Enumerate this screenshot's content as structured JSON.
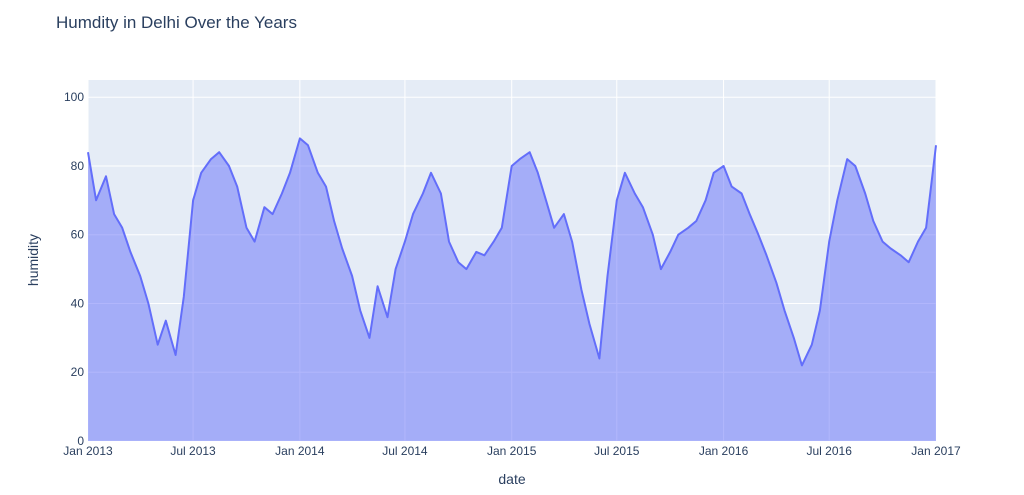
{
  "chart_data": {
    "type": "area",
    "title": "Humdity in Delhi Over the Years",
    "xlabel": "date",
    "ylabel": "humidity",
    "xlim": [
      "2013-01-01",
      "2017-01-01"
    ],
    "ylim": [
      0,
      105
    ],
    "grid": true,
    "legend": "none",
    "colors": {
      "line": "#636efa",
      "fill": "rgba(99,110,250,0.5)",
      "plot_bg": "#e5ecf6",
      "grid": "#ffffff",
      "text": "#2a3f5f"
    },
    "x_ticks": [
      {
        "date": "2013-01-01",
        "label": "Jan 2013"
      },
      {
        "date": "2013-07-01",
        "label": "Jul 2013"
      },
      {
        "date": "2014-01-01",
        "label": "Jan 2014"
      },
      {
        "date": "2014-07-01",
        "label": "Jul 2014"
      },
      {
        "date": "2015-01-01",
        "label": "Jan 2015"
      },
      {
        "date": "2015-07-01",
        "label": "Jul 2015"
      },
      {
        "date": "2016-01-01",
        "label": "Jan 2016"
      },
      {
        "date": "2016-07-01",
        "label": "Jul 2016"
      },
      {
        "date": "2017-01-01",
        "label": "Jan 2017"
      }
    ],
    "y_ticks": [
      0,
      20,
      40,
      60,
      80,
      100
    ],
    "series": [
      {
        "x": [
          "2013-01-01",
          "2013-01-15",
          "2013-02-01",
          "2013-02-15",
          "2013-03-01",
          "2013-03-15",
          "2013-04-01",
          "2013-04-15",
          "2013-05-01",
          "2013-05-15",
          "2013-06-01",
          "2013-06-15",
          "2013-07-01",
          "2013-07-15",
          "2013-08-01",
          "2013-08-15",
          "2013-09-01",
          "2013-09-15",
          "2013-10-01",
          "2013-10-15",
          "2013-11-01",
          "2013-11-15",
          "2013-12-01",
          "2013-12-15",
          "2014-01-01",
          "2014-01-15",
          "2014-02-01",
          "2014-02-15",
          "2014-03-01",
          "2014-03-15",
          "2014-04-01",
          "2014-04-15",
          "2014-05-01",
          "2014-05-15",
          "2014-06-01",
          "2014-06-15",
          "2014-07-01",
          "2014-07-15",
          "2014-08-01",
          "2014-08-15",
          "2014-09-01",
          "2014-09-15",
          "2014-10-01",
          "2014-10-15",
          "2014-11-01",
          "2014-11-15",
          "2014-12-01",
          "2014-12-15",
          "2015-01-01",
          "2015-01-15",
          "2015-02-01",
          "2015-02-15",
          "2015-03-01",
          "2015-03-15",
          "2015-04-01",
          "2015-04-15",
          "2015-05-01",
          "2015-05-15",
          "2015-06-01",
          "2015-06-15",
          "2015-07-01",
          "2015-07-15",
          "2015-08-01",
          "2015-08-15",
          "2015-09-01",
          "2015-09-15",
          "2015-10-01",
          "2015-10-15",
          "2015-11-01",
          "2015-11-15",
          "2015-12-01",
          "2015-12-15",
          "2016-01-01",
          "2016-01-15",
          "2016-02-01",
          "2016-02-15",
          "2016-03-01",
          "2016-03-15",
          "2016-04-01",
          "2016-04-15",
          "2016-05-01",
          "2016-05-15",
          "2016-06-01",
          "2016-06-15",
          "2016-07-01",
          "2016-07-15",
          "2016-08-01",
          "2016-08-15",
          "2016-09-01",
          "2016-09-15",
          "2016-10-01",
          "2016-10-15",
          "2016-11-01",
          "2016-11-15",
          "2016-12-01",
          "2016-12-15",
          "2017-01-01"
        ],
        "y": [
          84,
          70,
          77,
          66,
          62,
          55,
          48,
          40,
          28,
          35,
          25,
          42,
          70,
          78,
          82,
          84,
          80,
          74,
          62,
          58,
          68,
          66,
          72,
          78,
          88,
          86,
          78,
          74,
          64,
          56,
          48,
          38,
          30,
          45,
          36,
          50,
          58,
          66,
          72,
          78,
          72,
          58,
          52,
          50,
          55,
          54,
          58,
          62,
          80,
          82,
          84,
          78,
          70,
          62,
          66,
          58,
          44,
          34,
          24,
          48,
          70,
          78,
          72,
          68,
          60,
          50,
          55,
          60,
          62,
          64,
          70,
          78,
          80,
          74,
          72,
          66,
          60,
          54,
          46,
          38,
          30,
          22,
          28,
          38,
          58,
          70,
          82,
          80,
          72,
          64,
          58,
          56,
          54,
          52,
          58,
          62,
          86
        ]
      }
    ]
  }
}
